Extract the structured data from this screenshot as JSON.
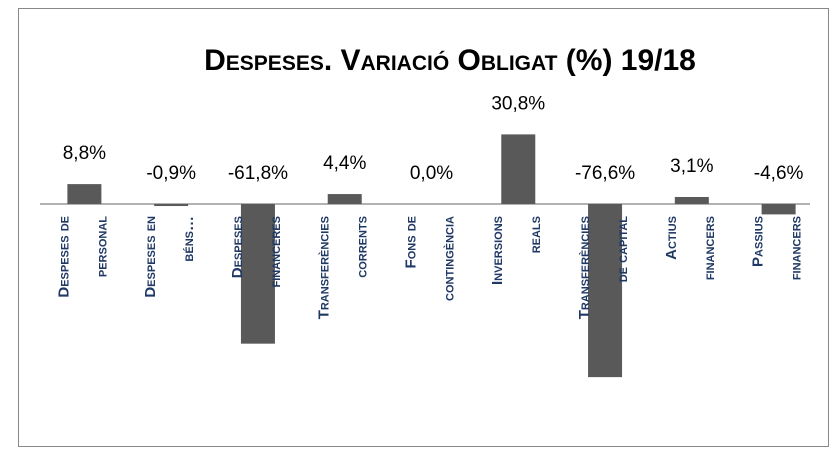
{
  "chart_data": {
    "type": "bar",
    "title": "Despeses. Variació Obligat (%)  19/18",
    "categories": [
      [
        "Despeses de",
        "personal"
      ],
      [
        "Despeses en",
        "béns…"
      ],
      [
        "Despeses",
        "financeres"
      ],
      [
        "Transferències",
        "corrents"
      ],
      [
        "Fons de",
        "contingència"
      ],
      [
        "Inversions",
        "reals"
      ],
      [
        "Transferències",
        "de capital"
      ],
      [
        "Actius",
        "financers"
      ],
      [
        "Passius",
        "financers"
      ]
    ],
    "values": [
      8.8,
      -0.9,
      -61.8,
      4.4,
      0.0,
      30.8,
      -76.6,
      3.1,
      -4.6
    ],
    "value_labels": [
      "8,8%",
      "-0,9%",
      "-61,8%",
      "4,4%",
      "0,0%",
      "30,8%",
      "-76,6%",
      "3,1%",
      "-4,6%"
    ],
    "color": "#595959"
  }
}
